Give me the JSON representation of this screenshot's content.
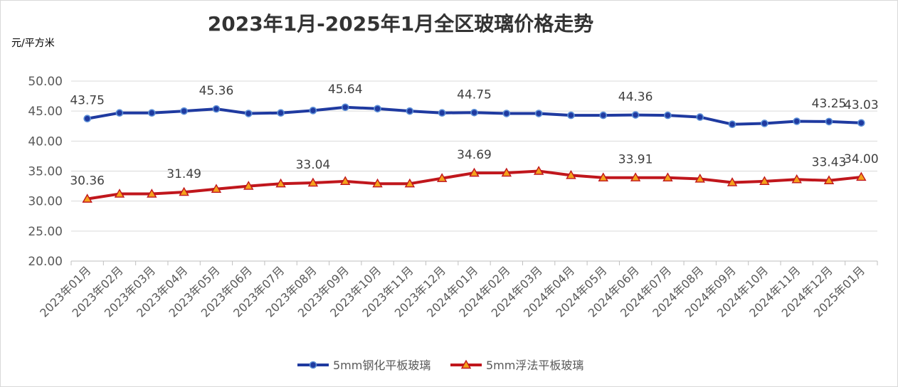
{
  "chart_data": {
    "type": "line",
    "title": "2023年1月-2025年1月全区玻璃价格走势",
    "ylabel": "元/平方米",
    "ylim": [
      20,
      50
    ],
    "yticks": [
      "20.00",
      "25.00",
      "30.00",
      "35.00",
      "40.00",
      "45.00",
      "50.00"
    ],
    "grid": "horizontal",
    "legend_position": "bottom",
    "categories": [
      "2023年01月",
      "2023年02月",
      "2023年03月",
      "2023年04月",
      "2023年05月",
      "2023年06月",
      "2023年07月",
      "2023年08月",
      "2023年09月",
      "2023年10月",
      "2023年11月",
      "2023年12月",
      "2024年01月",
      "2024年02月",
      "2024年03月",
      "2024年04月",
      "2024年05月",
      "2024年06月",
      "2024年07月",
      "2024年08月",
      "2024年09月",
      "2024年10月",
      "2024年11月",
      "2024年12月",
      "2025年01月"
    ],
    "series": [
      {
        "name": "5mm钢化平板玻璃",
        "color": "#1f3aa0",
        "marker": "circle",
        "values": [
          43.75,
          44.7,
          44.7,
          45.0,
          45.36,
          44.6,
          44.7,
          45.1,
          45.64,
          45.4,
          45.0,
          44.7,
          44.75,
          44.6,
          44.6,
          44.3,
          44.3,
          44.36,
          44.3,
          44.0,
          42.8,
          42.95,
          43.3,
          43.25,
          43.03
        ],
        "labels": {
          "0": "43.75",
          "4": "45.36",
          "8": "45.64",
          "12": "44.75",
          "17": "44.36",
          "23": "43.25",
          "24": "43.03"
        }
      },
      {
        "name": "5mm浮法平板玻璃",
        "color": "#c0161c",
        "marker": "triangle",
        "values": [
          30.36,
          31.2,
          31.2,
          31.49,
          32.0,
          32.5,
          32.9,
          33.04,
          33.3,
          32.9,
          32.9,
          33.8,
          34.69,
          34.7,
          35.0,
          34.3,
          33.9,
          33.91,
          33.9,
          33.7,
          33.1,
          33.3,
          33.6,
          33.43,
          34.0
        ],
        "labels": {
          "0": "30.36",
          "3": "31.49",
          "7": "33.04",
          "12": "34.69",
          "17": "33.91",
          "23": "33.43",
          "24": "34.00"
        }
      }
    ]
  }
}
